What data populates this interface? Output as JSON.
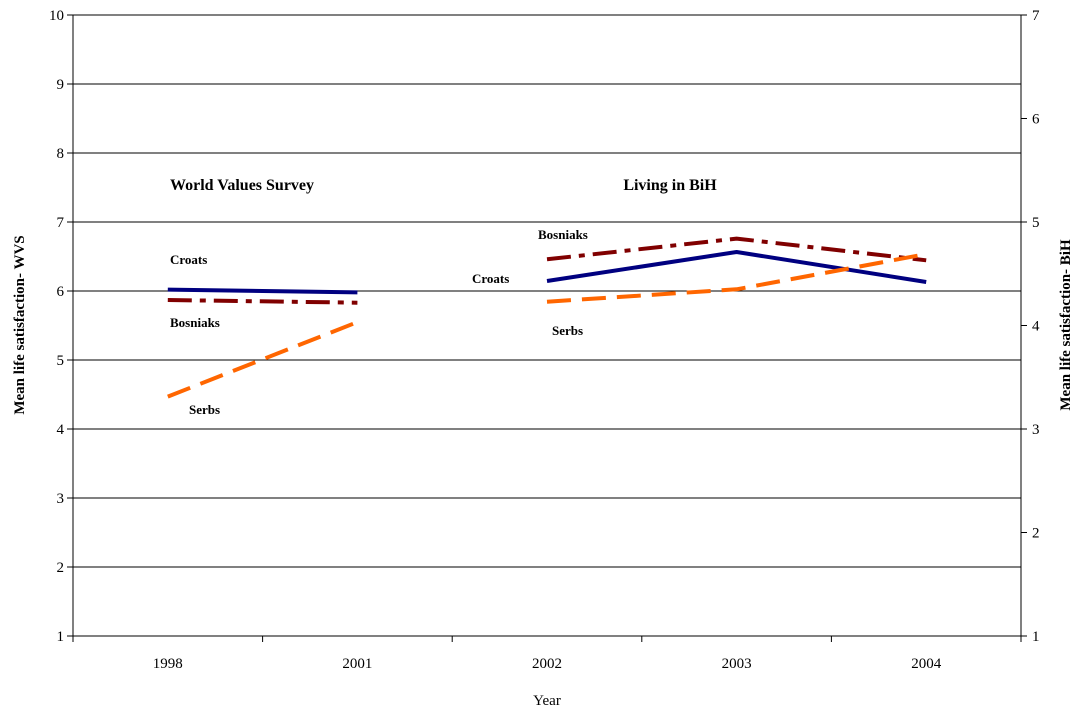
{
  "chart_data": {
    "type": "line",
    "xlabel": "Year",
    "ylabel_left": "Mean life satisfaction- WVS",
    "ylabel_right": "Mean life satisfaction- BiH",
    "ylim_left": [
      1,
      10
    ],
    "ylim_right": [
      1,
      7
    ],
    "yticks_left": [
      1,
      2,
      3,
      4,
      5,
      6,
      7,
      8,
      9,
      10
    ],
    "yticks_right": [
      1,
      2,
      3,
      4,
      5,
      6,
      7
    ],
    "categories": [
      "1998",
      "2001",
      "2002",
      "2003",
      "2004"
    ],
    "grid": true,
    "legend": "none",
    "panels": [
      {
        "title": "World Values Survey",
        "axis": "left",
        "categories": [
          "1998",
          "2001"
        ],
        "series": [
          {
            "name": "Croats",
            "values": [
              6.02,
              5.98
            ],
            "color": "#000080",
            "dash": "solid"
          },
          {
            "name": "Bosniaks",
            "values": [
              5.87,
              5.83
            ],
            "color": "#800000",
            "dash": "dashdot"
          },
          {
            "name": "Serbs",
            "values": [
              4.47,
              5.55
            ],
            "color": "#FF6600",
            "dash": "dash"
          }
        ]
      },
      {
        "title": "Living in BiH",
        "axis": "right",
        "categories": [
          "2002",
          "2003",
          "2004"
        ],
        "series": [
          {
            "name": "Bosniaks",
            "values": [
              4.64,
              4.84,
              4.63
            ],
            "color": "#800000",
            "dash": "dashdot"
          },
          {
            "name": "Croats",
            "values": [
              4.43,
              4.71,
              4.42
            ],
            "color": "#000080",
            "dash": "solid"
          },
          {
            "name": "Serbs",
            "values": [
              4.23,
              4.35,
              4.69
            ],
            "color": "#FF6600",
            "dash": "dash"
          }
        ]
      }
    ]
  }
}
